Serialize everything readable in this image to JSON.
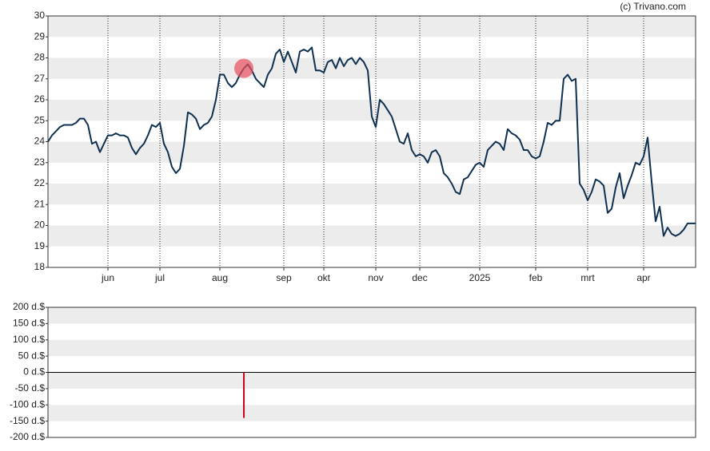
{
  "chart_data": [
    {
      "type": "line",
      "source": "(c) Trivano.com",
      "color": "#0f3050",
      "ylim": [
        18,
        30
      ],
      "yticks": [
        18,
        19,
        20,
        21,
        22,
        23,
        24,
        25,
        26,
        27,
        28,
        29,
        30
      ],
      "grid": true,
      "categories": [
        null,
        null,
        null,
        null,
        null,
        null,
        null,
        null,
        null,
        null,
        null,
        null,
        null,
        null,
        null,
        "jun",
        null,
        null,
        null,
        null,
        null,
        null,
        null,
        null,
        null,
        null,
        null,
        null,
        "jul",
        null,
        null,
        null,
        null,
        null,
        null,
        null,
        null,
        null,
        null,
        null,
        null,
        null,
        null,
        "aug",
        null,
        null,
        null,
        null,
        null,
        null,
        null,
        null,
        null,
        null,
        null,
        null,
        null,
        null,
        null,
        "sep",
        null,
        null,
        null,
        null,
        null,
        null,
        null,
        null,
        null,
        "okt",
        null,
        null,
        null,
        null,
        null,
        null,
        null,
        null,
        null,
        null,
        null,
        null,
        "nov",
        null,
        null,
        null,
        null,
        null,
        null,
        null,
        null,
        null,
        null,
        "dec",
        null,
        null,
        null,
        null,
        null,
        null,
        null,
        null,
        null,
        null,
        null,
        null,
        null,
        null,
        "2025",
        null,
        null,
        null,
        null,
        null,
        null,
        null,
        null,
        null,
        null,
        null,
        null,
        null,
        "feb",
        null,
        null,
        null,
        null,
        null,
        null,
        null,
        null,
        null,
        null,
        null,
        null,
        "mrt",
        null,
        null,
        null,
        null,
        null,
        null,
        null,
        null,
        null,
        null,
        null,
        null,
        null,
        "apr",
        null,
        null,
        null,
        null,
        null,
        null,
        null,
        null,
        null,
        null,
        null,
        null,
        null
      ],
      "values": [
        24.0,
        24.3,
        24.5,
        24.7,
        24.8,
        24.8,
        24.8,
        24.9,
        25.1,
        25.1,
        24.8,
        23.9,
        24.0,
        23.5,
        23.9,
        24.3,
        24.3,
        24.4,
        24.3,
        24.3,
        24.2,
        23.7,
        23.4,
        23.7,
        23.9,
        24.3,
        24.8,
        24.7,
        24.9,
        23.9,
        23.5,
        22.8,
        22.5,
        22.7,
        23.8,
        25.4,
        25.3,
        25.1,
        24.6,
        24.8,
        24.9,
        25.2,
        26.0,
        27.2,
        27.2,
        26.8,
        26.6,
        26.8,
        27.2,
        27.5,
        27.7,
        27.4,
        27.0,
        26.8,
        26.6,
        27.2,
        27.5,
        28.2,
        28.4,
        27.8,
        28.3,
        27.8,
        27.3,
        28.3,
        28.4,
        28.3,
        28.5,
        27.4,
        27.4,
        27.3,
        27.8,
        27.9,
        27.5,
        28.0,
        27.6,
        27.9,
        28.0,
        27.7,
        28.0,
        27.8,
        27.4,
        25.2,
        24.7,
        26.0,
        25.8,
        25.5,
        25.2,
        24.6,
        24.0,
        23.9,
        24.4,
        23.6,
        23.3,
        23.4,
        23.3,
        23.0,
        23.5,
        23.6,
        23.3,
        22.5,
        22.3,
        22.0,
        21.6,
        21.5,
        22.2,
        22.3,
        22.6,
        22.9,
        23.0,
        22.8,
        23.6,
        23.8,
        24.0,
        23.9,
        23.6,
        24.6,
        24.4,
        24.3,
        24.1,
        23.6,
        23.6,
        23.3,
        23.2,
        23.3,
        24.0,
        24.9,
        24.8,
        25.0,
        25.0,
        27.0,
        27.2,
        26.9,
        27.0,
        22.0,
        21.7,
        21.2,
        21.6,
        22.2,
        22.1,
        21.9,
        20.6,
        20.8,
        21.8,
        22.5,
        21.3,
        21.9,
        22.4,
        23.0,
        22.9,
        23.3,
        24.2,
        22.1,
        20.2,
        20.9,
        19.5,
        19.9,
        19.6,
        19.5,
        19.6,
        19.8,
        20.1,
        20.1,
        20.1
      ]
    },
    {
      "type": "bar",
      "color": "#d0021b",
      "ylim": [
        -200,
        200
      ],
      "yticks": [
        {
          "value": -200,
          "label": "-200 d.$"
        },
        {
          "value": -150,
          "label": "-150 d.$"
        },
        {
          "value": -100,
          "label": "-100 d.$"
        },
        {
          "value": -50,
          "label": "-50 d.$"
        },
        {
          "value": 0,
          "label": "0 d.$"
        },
        {
          "value": 50,
          "label": "50 d.$"
        },
        {
          "value": 100,
          "label": "100 d.$"
        },
        {
          "value": 150,
          "label": "150 d.$"
        },
        {
          "value": 200,
          "label": "200 d.$"
        }
      ],
      "grid": true,
      "values": [
        null,
        null,
        null,
        null,
        null,
        null,
        null,
        null,
        null,
        null,
        null,
        null,
        null,
        null,
        null,
        null,
        null,
        null,
        null,
        null,
        null,
        null,
        null,
        null,
        null,
        null,
        null,
        null,
        null,
        null,
        null,
        null,
        null,
        null,
        null,
        null,
        null,
        null,
        null,
        null,
        null,
        null,
        null,
        null,
        null,
        null,
        null,
        null,
        null,
        -140,
        null,
        null,
        null,
        null,
        null,
        null,
        null,
        null,
        null,
        null,
        null,
        null,
        null,
        null,
        null,
        null,
        null,
        null,
        null,
        null,
        null,
        null,
        null,
        null,
        null,
        null,
        null,
        null,
        null,
        null,
        null,
        null,
        null,
        null,
        null,
        null,
        null,
        null,
        null,
        null,
        null,
        null,
        null,
        null,
        null,
        null,
        null,
        null,
        null,
        null,
        null,
        null,
        null,
        null,
        null,
        null,
        null,
        null,
        null,
        null,
        null,
        null,
        null,
        null,
        null,
        null,
        null,
        null,
        null,
        null,
        null,
        null,
        null,
        null,
        null,
        null,
        null,
        null,
        null,
        null,
        null,
        null,
        null,
        null,
        null,
        null,
        null,
        null,
        null,
        null,
        null,
        null,
        null,
        null,
        null,
        null,
        null,
        null,
        null,
        null,
        null,
        null,
        null,
        null,
        null,
        null,
        null,
        null,
        null,
        null,
        null,
        null,
        null
      ]
    }
  ]
}
